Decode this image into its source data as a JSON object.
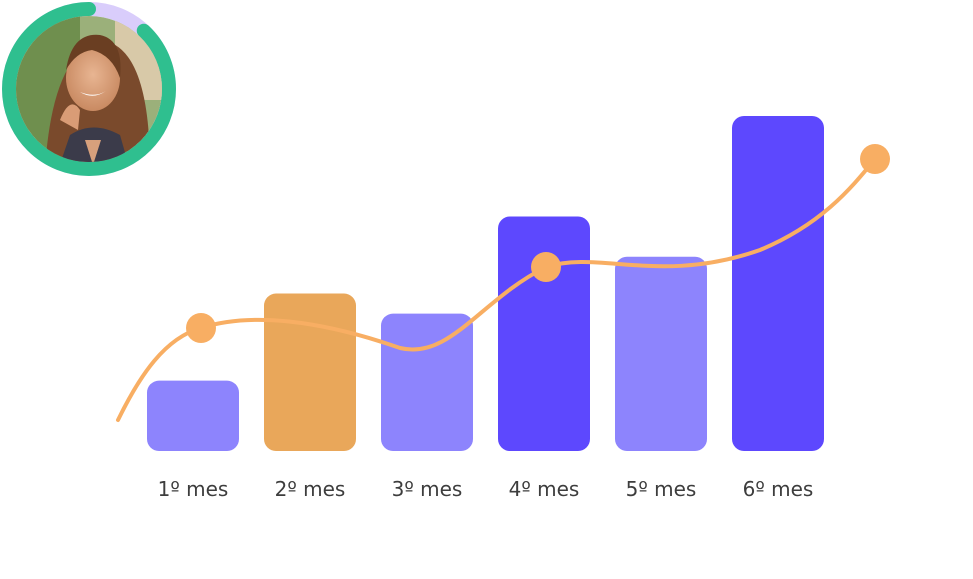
{
  "avatar": {
    "ring_progress": 0.88,
    "ring_color": "#2fbf8f",
    "ring_track_color": "#d9cdfb"
  },
  "chart_data": {
    "type": "bar",
    "title": "",
    "xlabel": "",
    "ylabel": "",
    "categories": [
      "1º mes",
      "2º mes",
      "3º mes",
      "4º mes",
      "5º mes",
      "6º mes"
    ],
    "values": [
      21,
      47,
      41,
      70,
      58,
      100
    ],
    "bar_colors": [
      "#8d84fd",
      "#e9a75a",
      "#8d84fd",
      "#5d48fe",
      "#8d84fd",
      "#5d48fe"
    ],
    "ylim": [
      0,
      100
    ],
    "grid": false,
    "trend_line": {
      "color": "#f8ae63",
      "marker_categories": [
        "1º mes",
        "4º mes",
        "6º mes"
      ]
    }
  }
}
